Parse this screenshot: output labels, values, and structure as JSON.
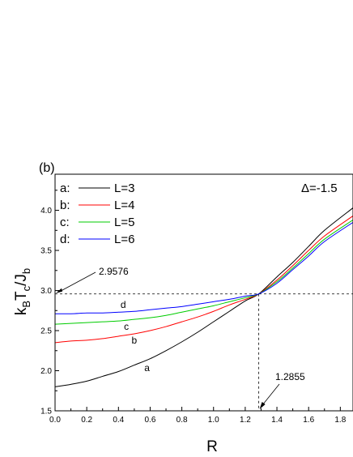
{
  "chart_data": {
    "type": "line",
    "panel_label": "(b)",
    "annotation_delta": "Δ=-1.5",
    "xlabel": "R",
    "ylabel": {
      "base": "k",
      "sub1": "B",
      "mid": "T",
      "sub2": "c",
      "slash": "/J",
      "sub3": "b"
    },
    "xlim": [
      0.0,
      1.88
    ],
    "ylim": [
      1.5,
      4.45
    ],
    "x_ticks": [
      "0.0",
      "0.2",
      "0.4",
      "0.6",
      "0.8",
      "1.0",
      "1.2",
      "1.4",
      "1.6",
      "1.8"
    ],
    "y_ticks": [
      "1.5",
      "2.0",
      "2.5",
      "3.0",
      "3.5",
      "4.0"
    ],
    "legend_position": "top-left",
    "series": [
      {
        "key": "a",
        "legend_prefix": "a:",
        "name": "L=3",
        "color": "#000000",
        "curve_label": "a",
        "points": [
          [
            0.0,
            1.8
          ],
          [
            0.1,
            1.83
          ],
          [
            0.2,
            1.87
          ],
          [
            0.3,
            1.93
          ],
          [
            0.4,
            1.99
          ],
          [
            0.5,
            2.07
          ],
          [
            0.6,
            2.15
          ],
          [
            0.7,
            2.25
          ],
          [
            0.8,
            2.36
          ],
          [
            0.9,
            2.48
          ],
          [
            1.0,
            2.61
          ],
          [
            1.1,
            2.74
          ],
          [
            1.2,
            2.87
          ],
          [
            1.2855,
            2.9576
          ],
          [
            1.4,
            3.17
          ],
          [
            1.5,
            3.35
          ],
          [
            1.6,
            3.55
          ],
          [
            1.7,
            3.75
          ],
          [
            1.88,
            4.03
          ]
        ]
      },
      {
        "key": "b",
        "legend_prefix": "b:",
        "name": "L=4",
        "color": "#ff0000",
        "curve_label": "b",
        "points": [
          [
            0.0,
            2.35
          ],
          [
            0.1,
            2.37
          ],
          [
            0.2,
            2.38
          ],
          [
            0.3,
            2.4
          ],
          [
            0.4,
            2.43
          ],
          [
            0.5,
            2.46
          ],
          [
            0.6,
            2.5
          ],
          [
            0.7,
            2.55
          ],
          [
            0.8,
            2.61
          ],
          [
            0.9,
            2.67
          ],
          [
            1.0,
            2.74
          ],
          [
            1.1,
            2.82
          ],
          [
            1.2,
            2.89
          ],
          [
            1.2855,
            2.9576
          ],
          [
            1.4,
            3.13
          ],
          [
            1.5,
            3.31
          ],
          [
            1.6,
            3.5
          ],
          [
            1.7,
            3.68
          ],
          [
            1.88,
            3.93
          ]
        ]
      },
      {
        "key": "c",
        "legend_prefix": "c:",
        "name": "L=5",
        "color": "#00cc00",
        "curve_label": "c",
        "points": [
          [
            0.0,
            2.58
          ],
          [
            0.1,
            2.59
          ],
          [
            0.2,
            2.6
          ],
          [
            0.3,
            2.61
          ],
          [
            0.4,
            2.62
          ],
          [
            0.5,
            2.64
          ],
          [
            0.6,
            2.66
          ],
          [
            0.7,
            2.69
          ],
          [
            0.8,
            2.73
          ],
          [
            0.9,
            2.77
          ],
          [
            1.0,
            2.81
          ],
          [
            1.1,
            2.86
          ],
          [
            1.2,
            2.91
          ],
          [
            1.2855,
            2.9576
          ],
          [
            1.4,
            3.11
          ],
          [
            1.5,
            3.28
          ],
          [
            1.6,
            3.46
          ],
          [
            1.7,
            3.64
          ],
          [
            1.88,
            3.88
          ]
        ]
      },
      {
        "key": "d",
        "legend_prefix": "d:",
        "name": "L=6",
        "color": "#0000ff",
        "curve_label": "d",
        "points": [
          [
            0.0,
            2.71
          ],
          [
            0.1,
            2.71
          ],
          [
            0.2,
            2.72
          ],
          [
            0.3,
            2.72
          ],
          [
            0.4,
            2.73
          ],
          [
            0.5,
            2.74
          ],
          [
            0.6,
            2.76
          ],
          [
            0.7,
            2.78
          ],
          [
            0.8,
            2.8
          ],
          [
            0.9,
            2.83
          ],
          [
            1.0,
            2.86
          ],
          [
            1.1,
            2.89
          ],
          [
            1.2,
            2.93
          ],
          [
            1.2855,
            2.9576
          ],
          [
            1.4,
            3.09
          ],
          [
            1.5,
            3.26
          ],
          [
            1.6,
            3.43
          ],
          [
            1.7,
            3.61
          ],
          [
            1.88,
            3.85
          ]
        ]
      }
    ],
    "reference": {
      "y_value": 2.9576,
      "y_label": "2.9576",
      "x_value": 1.2855,
      "x_label": "1.2855"
    }
  }
}
